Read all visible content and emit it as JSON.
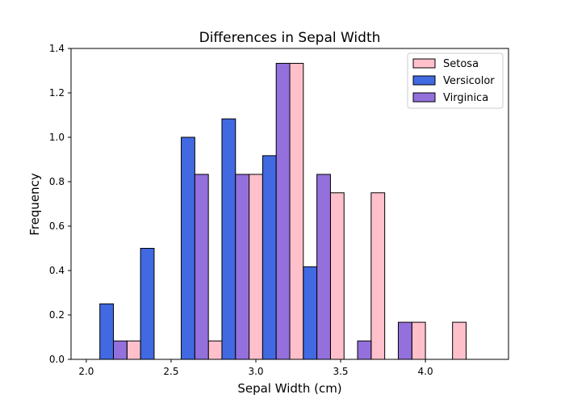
{
  "chart_data": {
    "type": "bar",
    "title": "Differences in Sepal Width",
    "xlabel": "Sepal Width (cm)",
    "ylabel": "Frequency",
    "xlim": [
      1.91,
      4.49
    ],
    "ylim": [
      0,
      1.4
    ],
    "xticks": [
      2.0,
      2.5,
      3.0,
      3.5,
      4.0
    ],
    "xtick_labels": [
      "2.0",
      "2.5",
      "3.0",
      "3.5",
      "4.0"
    ],
    "yticks": [
      0.0,
      0.2,
      0.4,
      0.6,
      0.8,
      1.0,
      1.2,
      1.4
    ],
    "ytick_labels": [
      "0.0",
      "0.2",
      "0.4",
      "0.6",
      "0.8",
      "1.0",
      "1.2",
      "1.4"
    ],
    "grid": false,
    "legend_position": "top-right",
    "bin_left_edges": [
      2.0,
      2.24,
      2.48,
      2.72,
      2.96,
      3.2,
      3.44,
      3.68,
      3.92,
      4.16
    ],
    "bin_width": 0.24,
    "series": [
      {
        "name": "Setosa",
        "color": "#ffc0cb",
        "values": [
          0,
          0.083,
          0,
          0.083,
          0.833,
          1.333,
          0.75,
          0.75,
          0.167,
          0.167
        ]
      },
      {
        "name": "Versicolor",
        "color": "#4169e1",
        "values": [
          0.25,
          0.5,
          1.0,
          1.083,
          0.917,
          0.417,
          0,
          0,
          0,
          0
        ]
      },
      {
        "name": "Virginica",
        "color": "#9370db",
        "values": [
          0.083,
          0,
          0.833,
          0.833,
          1.333,
          0.833,
          0.083,
          0.167,
          0,
          0
        ]
      }
    ]
  }
}
